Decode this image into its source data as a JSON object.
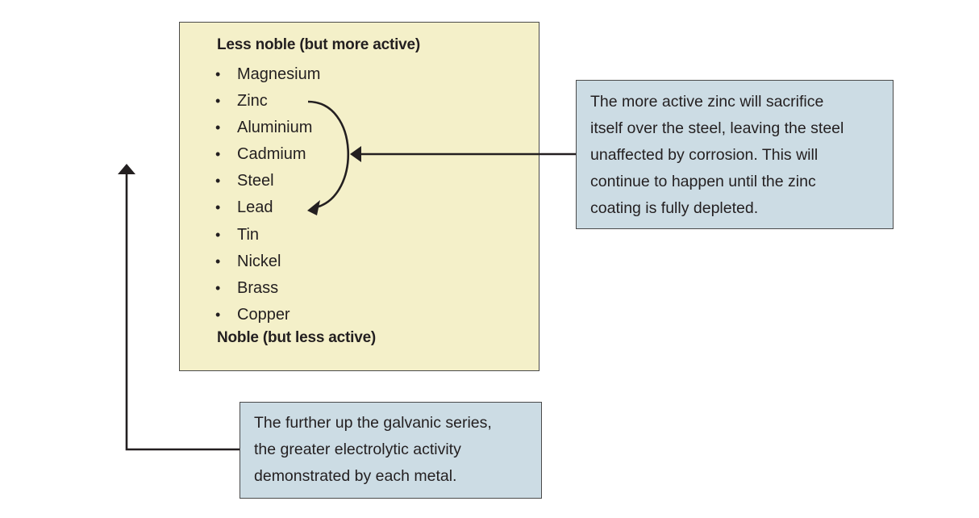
{
  "series_box": {
    "top_heading": "Less noble (but more active)",
    "bottom_heading": "Noble (but less active)",
    "bullet_glyph": "•",
    "metals": [
      "Magnesium",
      "Zinc",
      "Aluminium",
      "Cadmium",
      "Steel",
      "Lead",
      "Tin",
      "Nickel",
      "Brass",
      "Copper"
    ],
    "background_color": "#f4f0c9"
  },
  "zinc_callout": {
    "lines": [
      "The more active zinc will sacrifice",
      "itself over the steel, leaving the steel",
      "unaffected by corrosion. This will",
      "continue to happen until the zinc",
      "coating is fully depleted."
    ],
    "background_color": "#ccdce4"
  },
  "series_callout": {
    "lines": [
      "The further up the galvanic series,",
      "the greater electrolytic activity",
      "demonstrated by each metal."
    ],
    "background_color": "#ccdce4"
  },
  "connectors": {
    "stroke_color": "#231f20"
  }
}
